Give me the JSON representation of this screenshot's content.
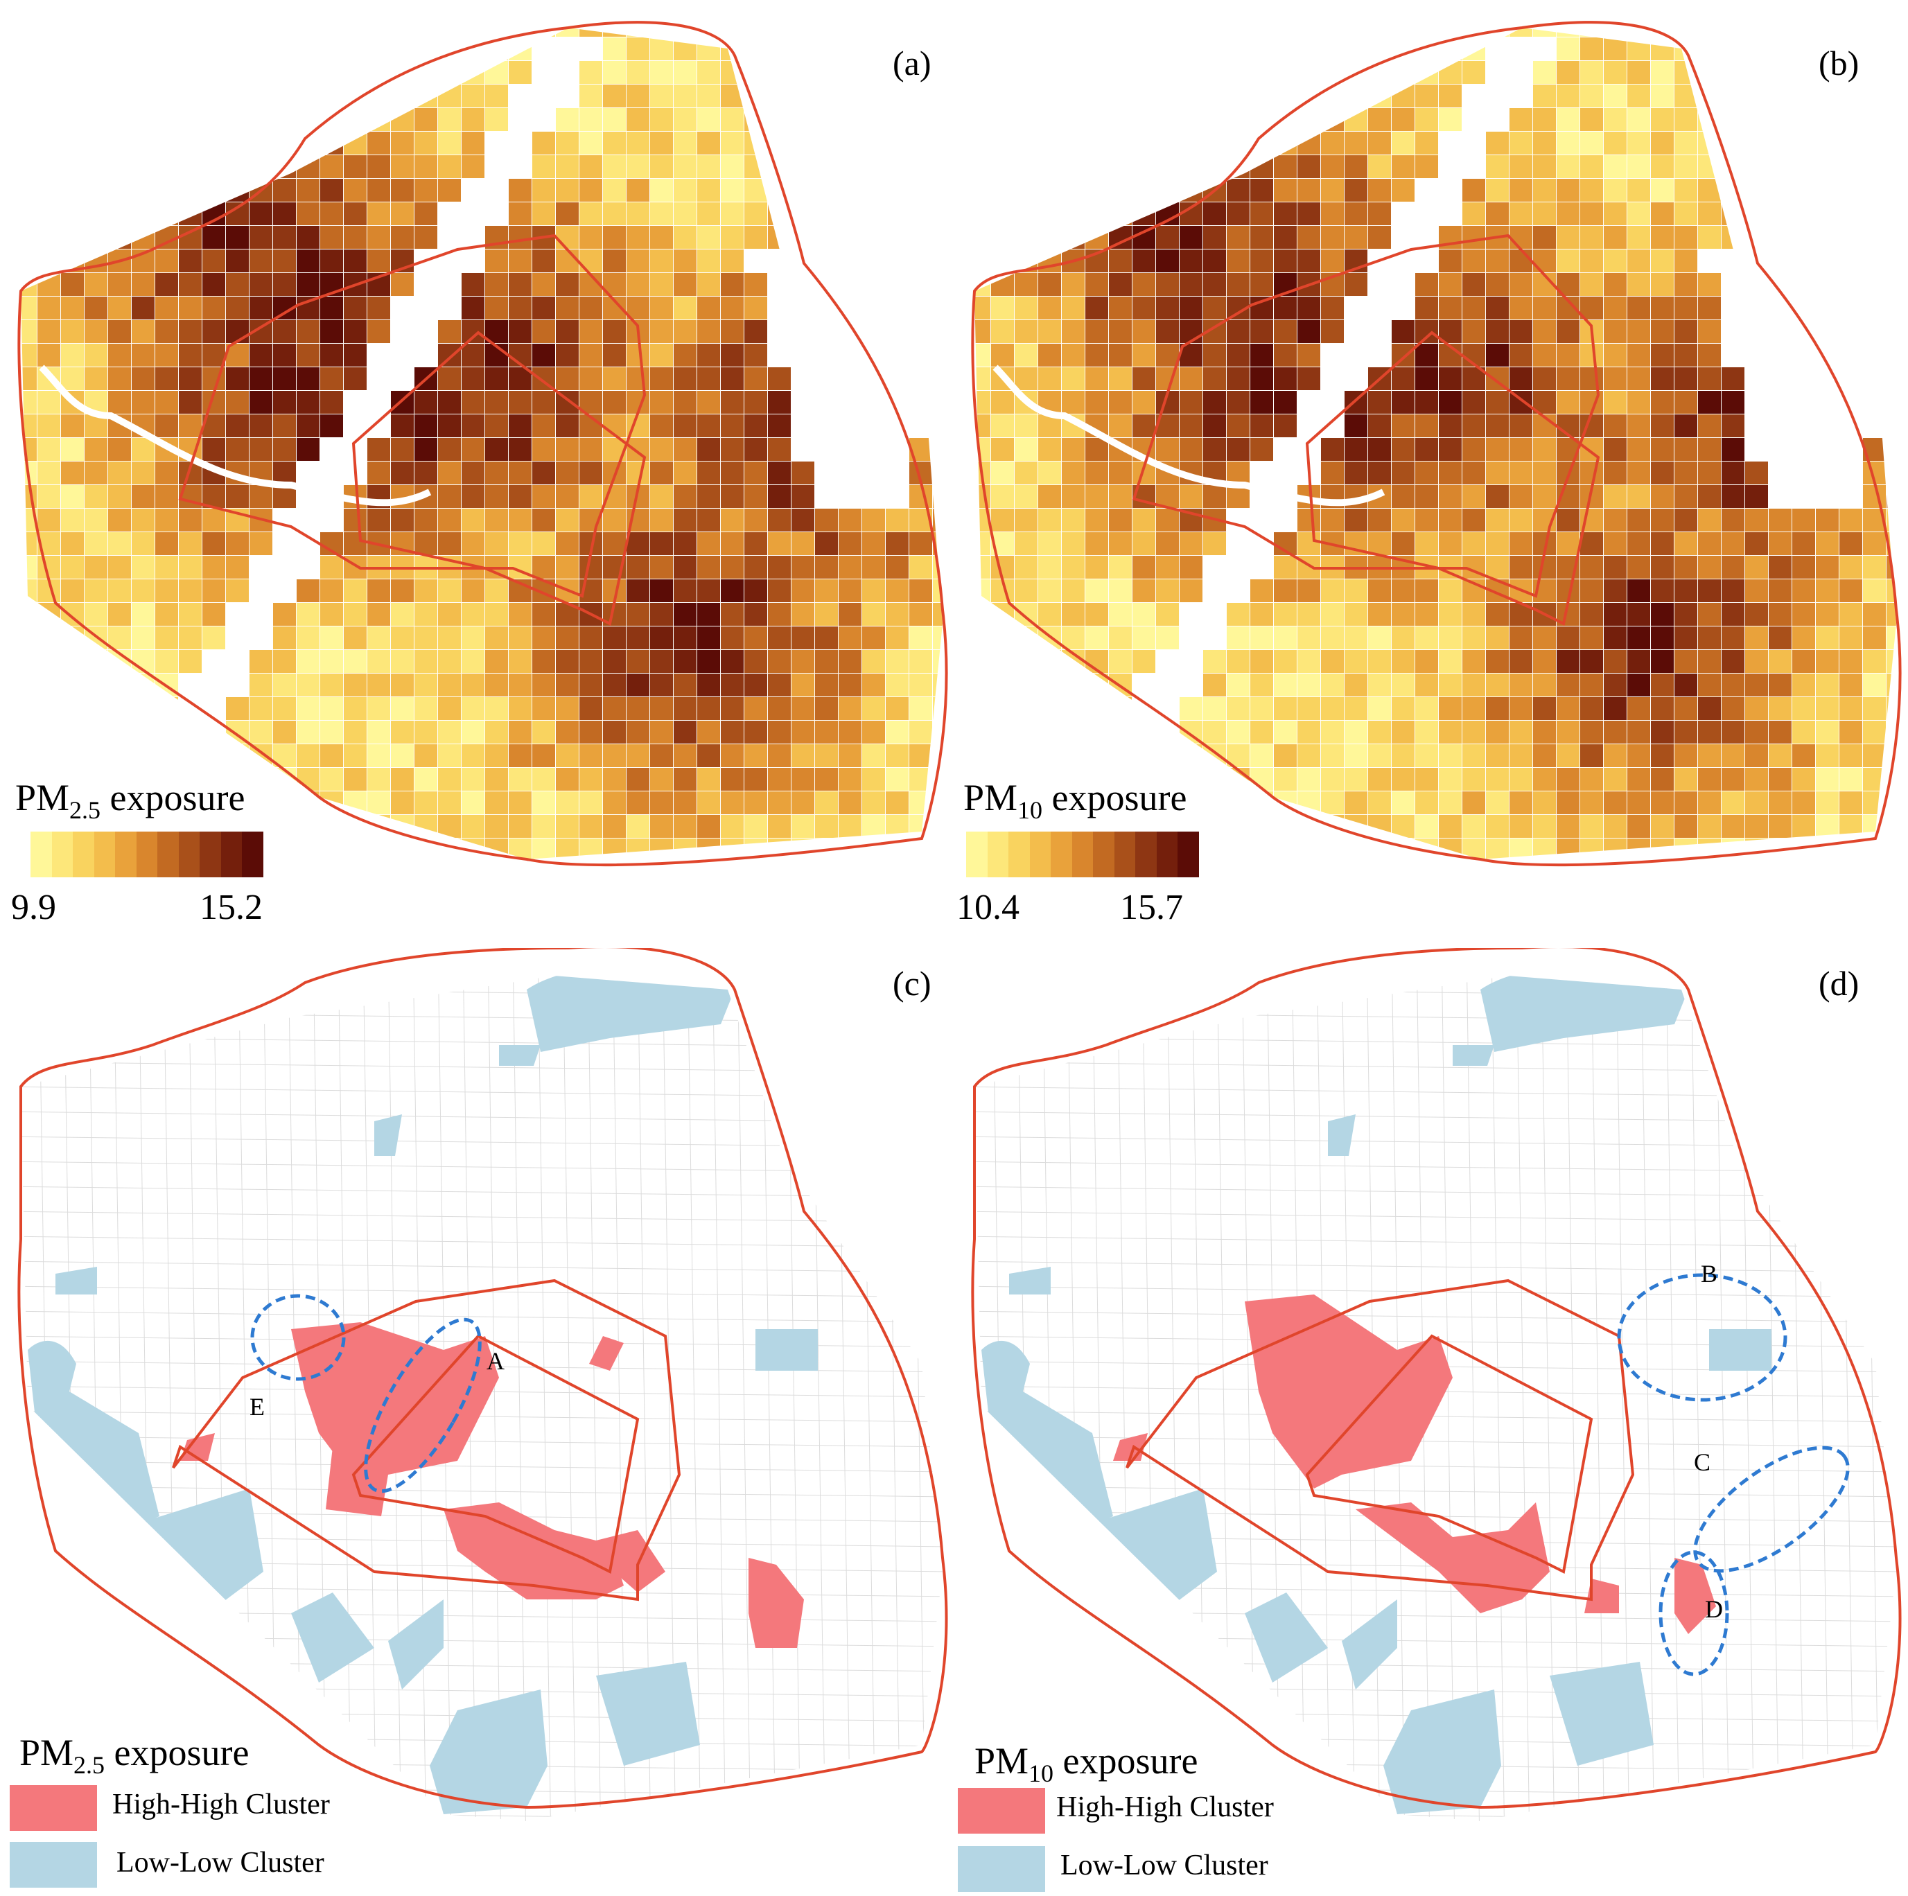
{
  "panels": {
    "a": {
      "label": "(a)",
      "legend_title": "PM",
      "legend_sub": "2.5",
      "legend_suffix": " exposure",
      "min": "9.9",
      "max": "15.2"
    },
    "b": {
      "label": "(b)",
      "legend_title": "PM",
      "legend_sub": "10",
      "legend_suffix": " exposure",
      "min": "10.4",
      "max": "15.7"
    },
    "c": {
      "label": "(c)",
      "legend_title": "PM",
      "legend_sub": "2.5",
      "legend_suffix": " exposure",
      "high": "High-High Cluster",
      "low": "Low-Low Cluster",
      "markers": [
        "A",
        "E"
      ]
    },
    "d": {
      "label": "(d)",
      "legend_title": "PM",
      "legend_sub": "10",
      "legend_suffix": " exposure",
      "high": "High-High Cluster",
      "low": "Low-Low Cluster",
      "markers": [
        "B",
        "C",
        "D"
      ]
    }
  },
  "colors": {
    "ramp": [
      "#fff799",
      "#fde77a",
      "#f9d35f",
      "#f3bd4c",
      "#e9a23b",
      "#d9862d",
      "#c26a22",
      "#a9501a",
      "#8e3613",
      "#741f0c",
      "#5b0c06"
    ],
    "boundary": "#e0452b",
    "high_high": "#f4787c",
    "low_low": "#b4d6e4",
    "river": "#ffffff",
    "ellipse": "#2e7ad1"
  }
}
